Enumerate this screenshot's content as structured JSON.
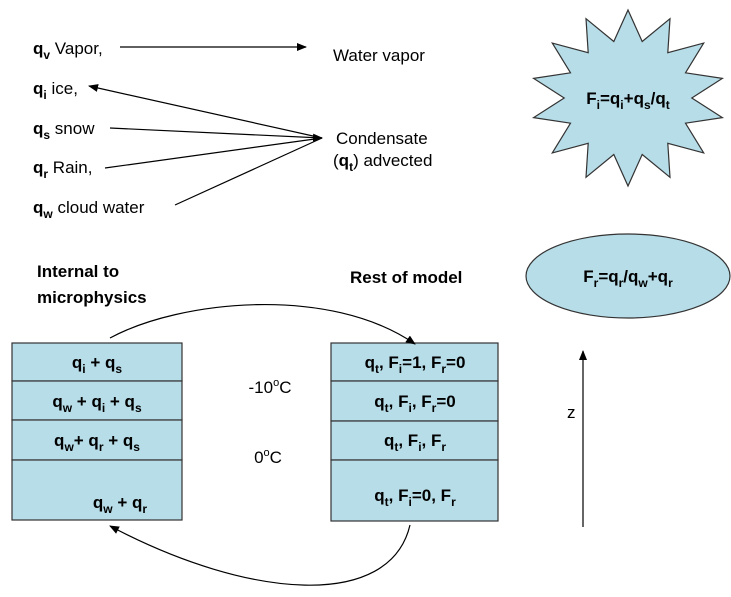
{
  "species": [
    {
      "runs": [
        {
          "b": "q"
        },
        {
          "sub": "v"
        },
        {
          "t": " Vapor,"
        }
      ]
    },
    {
      "runs": [
        {
          "b": "q"
        },
        {
          "sub": "i"
        },
        {
          "t": " ice,"
        }
      ]
    },
    {
      "runs": [
        {
          "b": "q"
        },
        {
          "sub": "s"
        },
        {
          "t": " snow"
        }
      ]
    },
    {
      "runs": [
        {
          "b": "q"
        },
        {
          "sub": "r"
        },
        {
          "t": " Rain,"
        }
      ]
    },
    {
      "runs": [
        {
          "b": "q"
        },
        {
          "sub": "w"
        },
        {
          "t": " cloud water"
        }
      ]
    }
  ],
  "water_vapor": {
    "runs": [
      {
        "t": "Water vapor"
      }
    ]
  },
  "condensate": [
    {
      "runs": [
        {
          "t": "Condensate"
        }
      ]
    },
    {
      "runs": [
        {
          "t": "("
        },
        {
          "b": "q"
        },
        {
          "sub": "t"
        },
        {
          "t": ") advected"
        }
      ]
    }
  ],
  "star_formula": {
    "runs": [
      {
        "t": "F"
      },
      {
        "sub": "i"
      },
      {
        "t": "=q"
      },
      {
        "sub": "i"
      },
      {
        "t": "+q"
      },
      {
        "sub": "s"
      },
      {
        "t": "/q"
      },
      {
        "sub": "t"
      }
    ]
  },
  "ellipse_formula": {
    "runs": [
      {
        "t": "F"
      },
      {
        "sub": "r"
      },
      {
        "t": "=q"
      },
      {
        "sub": "r"
      },
      {
        "t": "/q"
      },
      {
        "sub": "w"
      },
      {
        "t": "+q"
      },
      {
        "sub": "r"
      }
    ]
  },
  "internal_heading": [
    {
      "runs": [
        {
          "t": "Internal to"
        }
      ]
    },
    {
      "runs": [
        {
          "t": "microphysics"
        }
      ]
    }
  ],
  "rest_heading": {
    "runs": [
      {
        "t": "Rest of model"
      }
    ]
  },
  "left_boxes": [
    {
      "runs": [
        {
          "t": "q"
        },
        {
          "sub": "i"
        },
        {
          "t": " + q"
        },
        {
          "sub": "s"
        }
      ]
    },
    {
      "runs": [
        {
          "t": "q"
        },
        {
          "sub": "w"
        },
        {
          "t": " + q"
        },
        {
          "sub": "i"
        },
        {
          "t": " + q"
        },
        {
          "sub": "s"
        }
      ]
    },
    {
      "runs": [
        {
          "t": "q"
        },
        {
          "sub": "w"
        },
        {
          "t": "+ q"
        },
        {
          "sub": "r"
        },
        {
          "t": " + q"
        },
        {
          "sub": "s"
        }
      ]
    },
    {
      "runs": [
        {
          "t": "q"
        },
        {
          "sub": "w"
        },
        {
          "t": " + q"
        },
        {
          "sub": "r"
        }
      ]
    }
  ],
  "temperatures": [
    {
      "runs": [
        {
          "t": "-10"
        },
        {
          "sup": "o"
        },
        {
          "t": "C"
        }
      ]
    },
    {
      "runs": [
        {
          "t": "0"
        },
        {
          "sup": "o"
        },
        {
          "t": "C"
        }
      ]
    }
  ],
  "right_boxes": [
    {
      "runs": [
        {
          "t": "q"
        },
        {
          "sub": "t"
        },
        {
          "t": ", F"
        },
        {
          "sub": "i"
        },
        {
          "t": "=1, F"
        },
        {
          "sub": "r"
        },
        {
          "t": "=0"
        }
      ]
    },
    {
      "runs": [
        {
          "t": "q"
        },
        {
          "sub": "t"
        },
        {
          "t": ", F"
        },
        {
          "sub": "i"
        },
        {
          "t": ", F"
        },
        {
          "sub": "r"
        },
        {
          "t": "=0"
        }
      ]
    },
    {
      "runs": [
        {
          "t": "q"
        },
        {
          "sub": "t"
        },
        {
          "t": ", F"
        },
        {
          "sub": "i"
        },
        {
          "t": ", F"
        },
        {
          "sub": "r"
        }
      ]
    },
    {
      "runs": [
        {
          "t": "q"
        },
        {
          "sub": "t"
        },
        {
          "t": ", F"
        },
        {
          "sub": "i"
        },
        {
          "t": "=0, F"
        },
        {
          "sub": "r"
        }
      ]
    }
  ],
  "z_axis": {
    "runs": [
      {
        "t": "z"
      }
    ]
  }
}
